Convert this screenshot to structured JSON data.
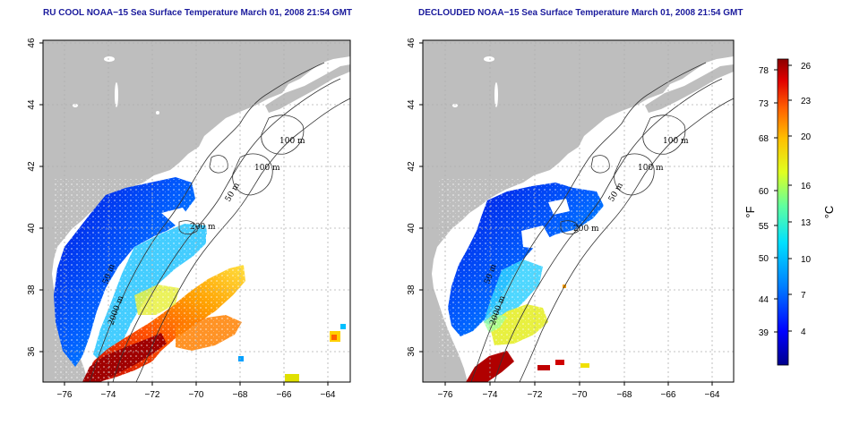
{
  "titles": {
    "left": "RU COOL NOAA−15 Sea Surface Temperature March 01, 2008 21:54 GMT",
    "right": "DECLOUDED NOAA−15 Sea Surface Temperature March 01, 2008 21:54 GMT"
  },
  "axes": {
    "lat_ticks": [
      "46",
      "44",
      "42",
      "40",
      "38",
      "36"
    ],
    "lon_ticks": [
      "−76",
      "−74",
      "−72",
      "−70",
      "−68",
      "−66",
      "−64"
    ],
    "lat_range": [
      35,
      46
    ],
    "lon_range": [
      -77,
      -63
    ]
  },
  "contour_labels": {
    "left": [
      "100 m",
      "100 m",
      "50 m",
      "200 m",
      "50 m",
      "2000 m"
    ],
    "right": [
      "100 m",
      "100 m",
      "50 m",
      "200 m",
      "50 m",
      "2000 m"
    ]
  },
  "colorbar": {
    "fahrenheit_ticks": [
      "78",
      "73",
      "68",
      "60",
      "55",
      "50",
      "44",
      "39"
    ],
    "celsius_ticks": [
      "26",
      "23",
      "20",
      "16",
      "13",
      "10",
      "7",
      "4"
    ],
    "fahrenheit_unit": "°F",
    "celsius_unit": "°C",
    "colors": [
      "#00008c",
      "#0000ff",
      "#0080ff",
      "#00e0ff",
      "#60ff9f",
      "#e0ff20",
      "#ffc000",
      "#ff6000",
      "#e00000",
      "#8c0000"
    ]
  },
  "colors": {
    "land": "#bebebe",
    "title": "#1a1a9c",
    "grid": "#b0b0b0"
  }
}
